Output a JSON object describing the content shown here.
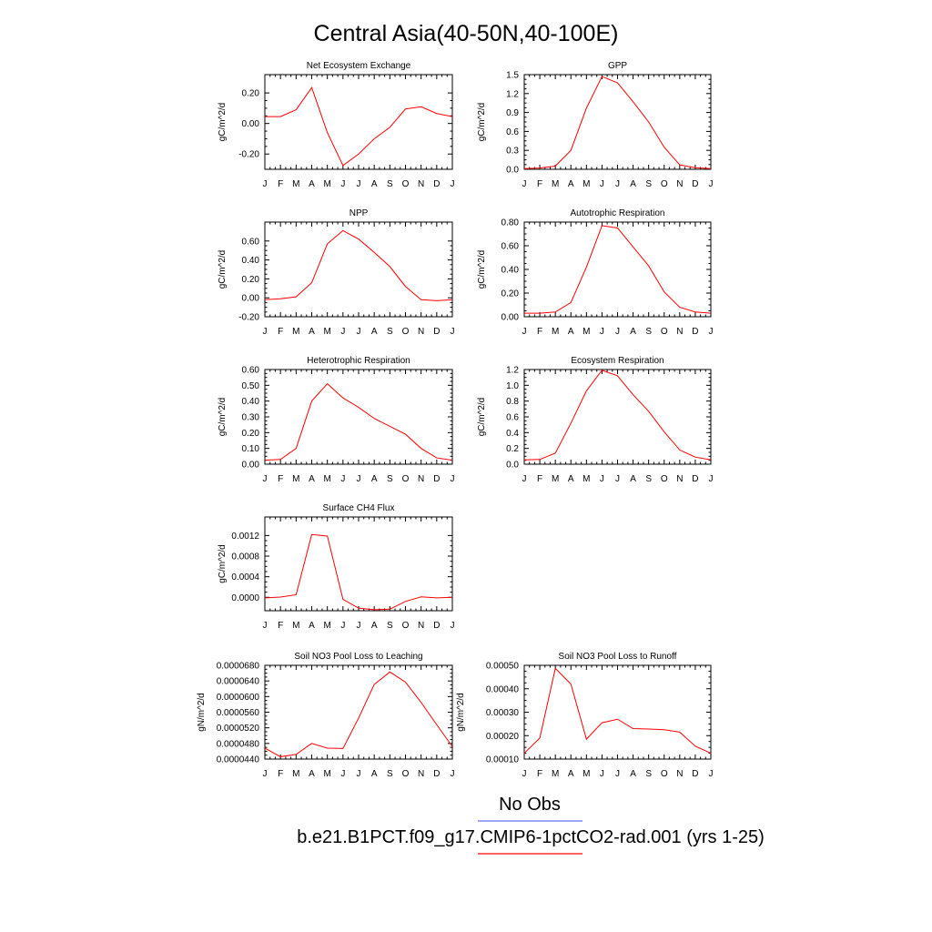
{
  "figure": {
    "title": "Central Asia(40-50N,40-100E)"
  },
  "legend": {
    "obs_label": "No Obs",
    "obs_color": "#6b6bff",
    "model_label": "b.e21.B1PCT.f09_g17.CMIP6-1pctCO2-rad.001 (yrs 1-25)",
    "model_color": "#ff0000"
  },
  "chart_data": [
    {
      "type": "line",
      "title": "Net Ecosystem Exchange",
      "ylabel": "gC/m^2/d",
      "xlabel": "",
      "categories": [
        "J",
        "F",
        "M",
        "A",
        "M",
        "J",
        "J",
        "A",
        "S",
        "O",
        "N",
        "D",
        "J"
      ],
      "ylim": [
        -0.3,
        0.32
      ],
      "yticks": [
        -0.2,
        0.0,
        0.2
      ],
      "ytick_labels": [
        "-0.20",
        "0.00",
        "0.20"
      ],
      "series": [
        {
          "color": "#ff0000",
          "values": [
            0.045,
            0.045,
            0.09,
            0.235,
            -0.06,
            -0.275,
            -0.2,
            -0.1,
            -0.025,
            0.095,
            0.11,
            0.065,
            0.045
          ]
        }
      ]
    },
    {
      "type": "line",
      "title": "GPP",
      "ylabel": "gC/m^2/d",
      "xlabel": "",
      "categories": [
        "J",
        "F",
        "M",
        "A",
        "M",
        "J",
        "J",
        "A",
        "S",
        "O",
        "N",
        "D",
        "J"
      ],
      "ylim": [
        0,
        1.5
      ],
      "yticks": [
        0,
        0.3,
        0.6,
        0.9,
        1.2,
        1.5
      ],
      "ytick_labels": [
        "0.0",
        "0.3",
        "0.6",
        "0.9",
        "1.2",
        "1.5"
      ],
      "series": [
        {
          "color": "#ff0000",
          "values": [
            0.01,
            0.02,
            0.05,
            0.3,
            0.97,
            1.47,
            1.37,
            1.07,
            0.75,
            0.35,
            0.07,
            0.025,
            0.01
          ]
        }
      ]
    },
    {
      "type": "line",
      "title": "NPP",
      "ylabel": "gC/m^2/d",
      "xlabel": "",
      "categories": [
        "J",
        "F",
        "M",
        "A",
        "M",
        "J",
        "J",
        "A",
        "S",
        "O",
        "N",
        "D",
        "J"
      ],
      "ylim": [
        -0.2,
        0.8
      ],
      "yticks": [
        -0.2,
        0.0,
        0.2,
        0.4,
        0.6
      ],
      "ytick_labels": [
        "-0.20",
        "0.00",
        "0.20",
        "0.40",
        "0.60"
      ],
      "series": [
        {
          "color": "#ff0000",
          "values": [
            -0.02,
            -0.01,
            0.01,
            0.16,
            0.57,
            0.71,
            0.62,
            0.48,
            0.33,
            0.12,
            -0.02,
            -0.03,
            -0.02
          ]
        }
      ]
    },
    {
      "type": "line",
      "title": "Autotrophic Respiration",
      "ylabel": "gC/m^2/d",
      "xlabel": "",
      "categories": [
        "J",
        "F",
        "M",
        "A",
        "M",
        "J",
        "J",
        "A",
        "S",
        "O",
        "N",
        "D",
        "J"
      ],
      "ylim": [
        0,
        0.8
      ],
      "yticks": [
        0,
        0.2,
        0.4,
        0.6,
        0.8
      ],
      "ytick_labels": [
        "0.00",
        "0.20",
        "0.40",
        "0.60",
        "0.80"
      ],
      "series": [
        {
          "color": "#ff0000",
          "values": [
            0.03,
            0.03,
            0.04,
            0.12,
            0.42,
            0.77,
            0.75,
            0.59,
            0.43,
            0.21,
            0.08,
            0.04,
            0.03
          ]
        }
      ]
    },
    {
      "type": "line",
      "title": "Heterotrophic Respiration",
      "ylabel": "gC/m^2/d",
      "xlabel": "",
      "categories": [
        "J",
        "F",
        "M",
        "A",
        "M",
        "J",
        "J",
        "A",
        "S",
        "O",
        "N",
        "D",
        "J"
      ],
      "ylim": [
        0,
        0.6
      ],
      "yticks": [
        0,
        0.1,
        0.2,
        0.3,
        0.4,
        0.5,
        0.6
      ],
      "ytick_labels": [
        "0.00",
        "0.10",
        "0.20",
        "0.30",
        "0.40",
        "0.50",
        "0.60"
      ],
      "series": [
        {
          "color": "#ff0000",
          "values": [
            0.025,
            0.03,
            0.1,
            0.4,
            0.51,
            0.42,
            0.36,
            0.29,
            0.24,
            0.19,
            0.1,
            0.04,
            0.025
          ]
        }
      ]
    },
    {
      "type": "line",
      "title": "Ecosystem Respiration",
      "ylabel": "gC/m^2/d",
      "xlabel": "",
      "categories": [
        "J",
        "F",
        "M",
        "A",
        "M",
        "J",
        "J",
        "A",
        "S",
        "O",
        "N",
        "D",
        "J"
      ],
      "ylim": [
        0,
        1.2
      ],
      "yticks": [
        0,
        0.2,
        0.4,
        0.6,
        0.8,
        1.0,
        1.2
      ],
      "ytick_labels": [
        "0.0",
        "0.2",
        "0.4",
        "0.6",
        "0.8",
        "1.0",
        "1.2"
      ],
      "series": [
        {
          "color": "#ff0000",
          "values": [
            0.055,
            0.06,
            0.14,
            0.52,
            0.93,
            1.19,
            1.12,
            0.88,
            0.67,
            0.41,
            0.18,
            0.09,
            0.055
          ]
        }
      ]
    },
    {
      "type": "line",
      "title": "Surface CH4 Flux",
      "ylabel": "gC/m^2/d",
      "xlabel": "",
      "categories": [
        "J",
        "F",
        "M",
        "A",
        "M",
        "J",
        "J",
        "A",
        "S",
        "O",
        "N",
        "D",
        "J"
      ],
      "ylim": [
        -0.00026,
        0.00156
      ],
      "yticks": [
        0,
        0.0004,
        0.0008,
        0.0012
      ],
      "ytick_labels": [
        "0.0000",
        "0.0004",
        "0.0008",
        "0.0012"
      ],
      "series": [
        {
          "color": "#ff0000",
          "values": [
            -1e-05,
            5e-06,
            5e-05,
            0.00122,
            0.00119,
            -4e-05,
            -0.00021,
            -0.00024,
            -0.00023,
            -8e-05,
            1e-05,
            -1e-05,
            0.0
          ]
        }
      ]
    },
    {
      "type": "line",
      "title": "Soil NO3 Pool Loss to Leaching",
      "ylabel": "gN/m^2/d",
      "xlabel": "",
      "categories": [
        "J",
        "F",
        "M",
        "A",
        "M",
        "J",
        "J",
        "A",
        "S",
        "O",
        "N",
        "D",
        "J"
      ],
      "ylim": [
        4.4e-05,
        6.8e-05
      ],
      "yticks": [
        4.4e-05,
        4.8e-05,
        5.2e-05,
        5.6e-05,
        6e-05,
        6.4e-05,
        6.8e-05
      ],
      "ytick_labels": [
        "0.0000440",
        "0.0000480",
        "0.0000520",
        "0.0000560",
        "0.0000600",
        "0.0000640",
        "0.0000680"
      ],
      "series": [
        {
          "color": "#ff0000",
          "values": [
            4.68e-05,
            4.46e-05,
            4.52e-05,
            4.8e-05,
            4.68e-05,
            4.67e-05,
            5.45e-05,
            6.31e-05,
            6.63e-05,
            6.37e-05,
            5.85e-05,
            5.28e-05,
            4.72e-05
          ]
        }
      ]
    },
    {
      "type": "line",
      "title": "Soil NO3 Pool Loss to Runoff",
      "ylabel": "gN/m^2/d",
      "xlabel": "",
      "categories": [
        "J",
        "F",
        "M",
        "A",
        "M",
        "J",
        "J",
        "A",
        "S",
        "O",
        "N",
        "D",
        "J"
      ],
      "ylim": [
        0.0001,
        0.0005
      ],
      "yticks": [
        0.0001,
        0.0002,
        0.0003,
        0.0004,
        0.0005
      ],
      "ytick_labels": [
        "0.00010",
        "0.00020",
        "0.00030",
        "0.00040",
        "0.00050"
      ],
      "series": [
        {
          "color": "#ff0000",
          "values": [
            0.000125,
            0.00019,
            0.000487,
            0.00042,
            0.000185,
            0.000255,
            0.00027,
            0.00023,
            0.000228,
            0.000225,
            0.000215,
            0.000155,
            0.000125
          ]
        }
      ]
    }
  ]
}
